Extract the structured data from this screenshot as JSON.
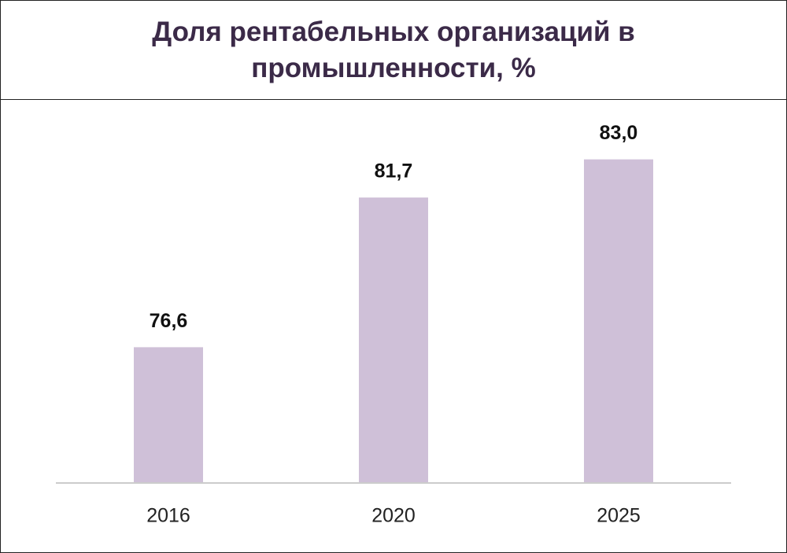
{
  "chart_data": {
    "type": "bar",
    "title": "Доля рентабельных организаций в промышленности, %",
    "categories": [
      "2016",
      "2020",
      "2025"
    ],
    "values": [
      76.6,
      81.7,
      83.0
    ],
    "value_labels": [
      "76,6",
      "81,7",
      "83,0"
    ],
    "color": "#cfc0d8",
    "ylim": [
      72,
      85
    ]
  }
}
